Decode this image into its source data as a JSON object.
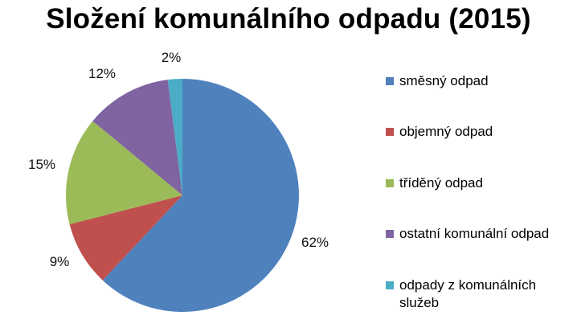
{
  "chart_data": {
    "type": "pie",
    "title": "Složení komunálního odpadu (2015)",
    "categories": [
      "směsný odpad",
      "objemný odpad",
      "tříděný odpad",
      "ostatní komunální odpad",
      "odpady z komunálních služeb"
    ],
    "values": [
      62,
      9,
      15,
      12,
      2
    ],
    "data_labels": [
      "62%",
      "9%",
      "15%",
      "12%",
      "2%"
    ],
    "colors": [
      "#4F81BD",
      "#C0504D",
      "#9BBB59",
      "#8064A2",
      "#4BACC6"
    ],
    "legend_position": "right"
  }
}
